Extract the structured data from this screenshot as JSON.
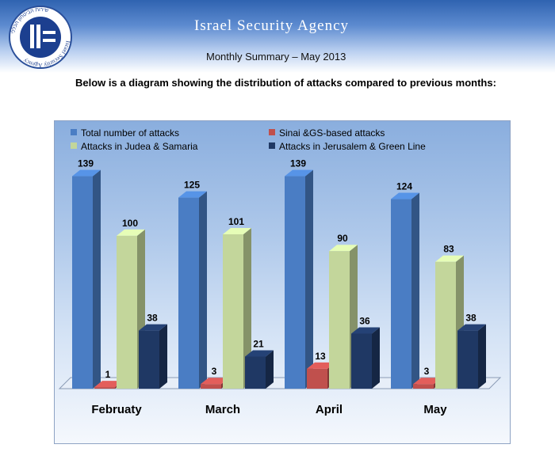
{
  "header": {
    "agency": "Israel Security Agency",
    "summary": "Monthly Summary – May 2013",
    "logo_ring_text": "Israel Security Agency",
    "logo_hebrew_text": "שירות הביטחון הכללי"
  },
  "intro": "Below is a diagram showing the distribution of attacks compared to previous months:",
  "chart_data": {
    "type": "bar",
    "style": "3d-clustered",
    "categories": [
      "Februaty",
      "March",
      "April",
      "May"
    ],
    "series": [
      {
        "name": "Total number of attacks",
        "values": [
          139,
          125,
          139,
          124
        ],
        "color": "#4a7dc4"
      },
      {
        "name": "Sinai &GS-based attacks",
        "values": [
          1,
          3,
          13,
          3
        ],
        "color": "#c0504d"
      },
      {
        "name": "Attacks in Judea & Samaria",
        "values": [
          100,
          101,
          90,
          83
        ],
        "color": "#c3d69b"
      },
      {
        "name": "Attacks in Jerusalem & Green Line",
        "values": [
          38,
          21,
          36,
          38
        ],
        "color": "#1f3864"
      }
    ],
    "ylim": [
      0,
      145
    ],
    "grid": false,
    "legend_position": "top"
  }
}
